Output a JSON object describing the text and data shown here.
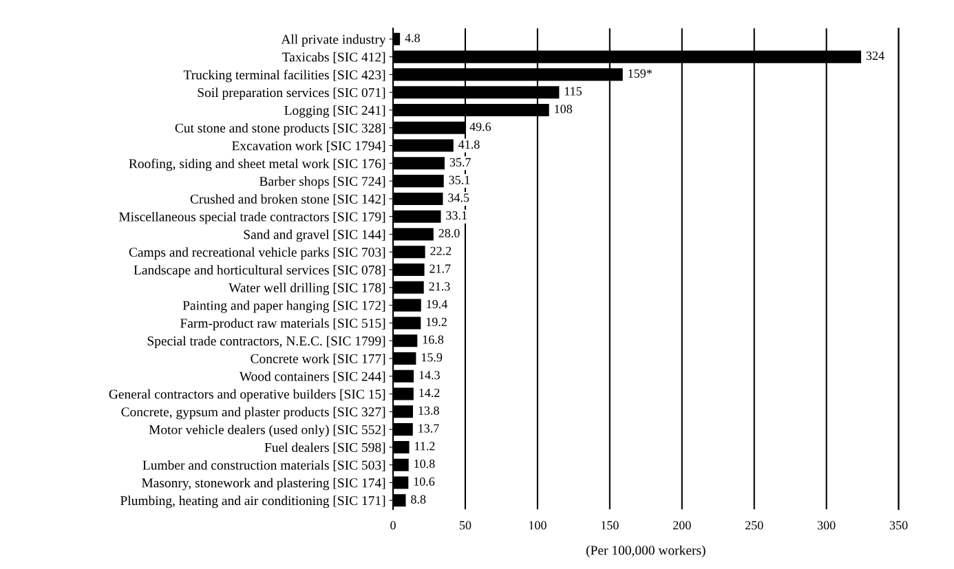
{
  "chart_data": {
    "type": "bar",
    "orientation": "horizontal",
    "categories": [
      "All private industry",
      "Taxicabs [SIC 412]",
      "Trucking terminal facilities [SIC 423]",
      "Soil preparation services [SIC 071]",
      "Logging [SIC 241]",
      "Cut stone and stone products [SIC 328]",
      "Excavation work [SIC 1794]",
      "Roofing, siding and sheet metal work [SIC 176]",
      "Barber shops [SIC 724]",
      "Crushed and broken stone [SIC 142]",
      "Miscellaneous special trade contractors [SIC 179]",
      "Sand and gravel [SIC 144]",
      "Camps and recreational vehicle parks [SIC 703]",
      "Landscape and horticultural services [SIC 078]",
      "Water well drilling [SIC 178]",
      "Painting and paper hanging [SIC 172]",
      "Farm-product raw materials [SIC 515]",
      "Special trade contractors, N.E.C. [SIC 1799]",
      "Concrete work [SIC 177]",
      "Wood containers [SIC 244]",
      "General contractors and operative builders [SIC 15]",
      "Concrete, gypsum and plaster products [SIC 327]",
      "Motor vehicle dealers (used only) [SIC 552]",
      "Fuel dealers [SIC 598]",
      "Lumber and construction materials [SIC 503]",
      "Masonry, stonework and plastering [SIC 174]",
      "Plumbing, heating and air conditioning [SIC 171]"
    ],
    "values": [
      4.8,
      324,
      159,
      115,
      108,
      49.6,
      41.8,
      35.7,
      35.1,
      34.5,
      33.1,
      28.0,
      22.2,
      21.7,
      21.3,
      19.4,
      19.2,
      16.8,
      15.9,
      14.3,
      14.2,
      13.8,
      13.7,
      11.2,
      10.8,
      10.6,
      8.8
    ],
    "value_labels": [
      "4.8",
      "324",
      "159*",
      "115",
      "108",
      "49.6",
      "41.8",
      "35.7",
      "35.1",
      "34.5",
      "33.1",
      "28.0",
      "22.2",
      "21.7",
      "21.3",
      "19.4",
      "19.2",
      "16.8",
      "15.9",
      "14.3",
      "14.2",
      "13.8",
      "13.7",
      "11.2",
      "10.8",
      "10.6",
      "8.8"
    ],
    "color": "#000000",
    "xlabel": "(Per 100,000 workers)",
    "xlim": [
      0,
      350
    ],
    "xticks": [
      0,
      50,
      100,
      150,
      200,
      250,
      300,
      350
    ],
    "grid": "x"
  }
}
